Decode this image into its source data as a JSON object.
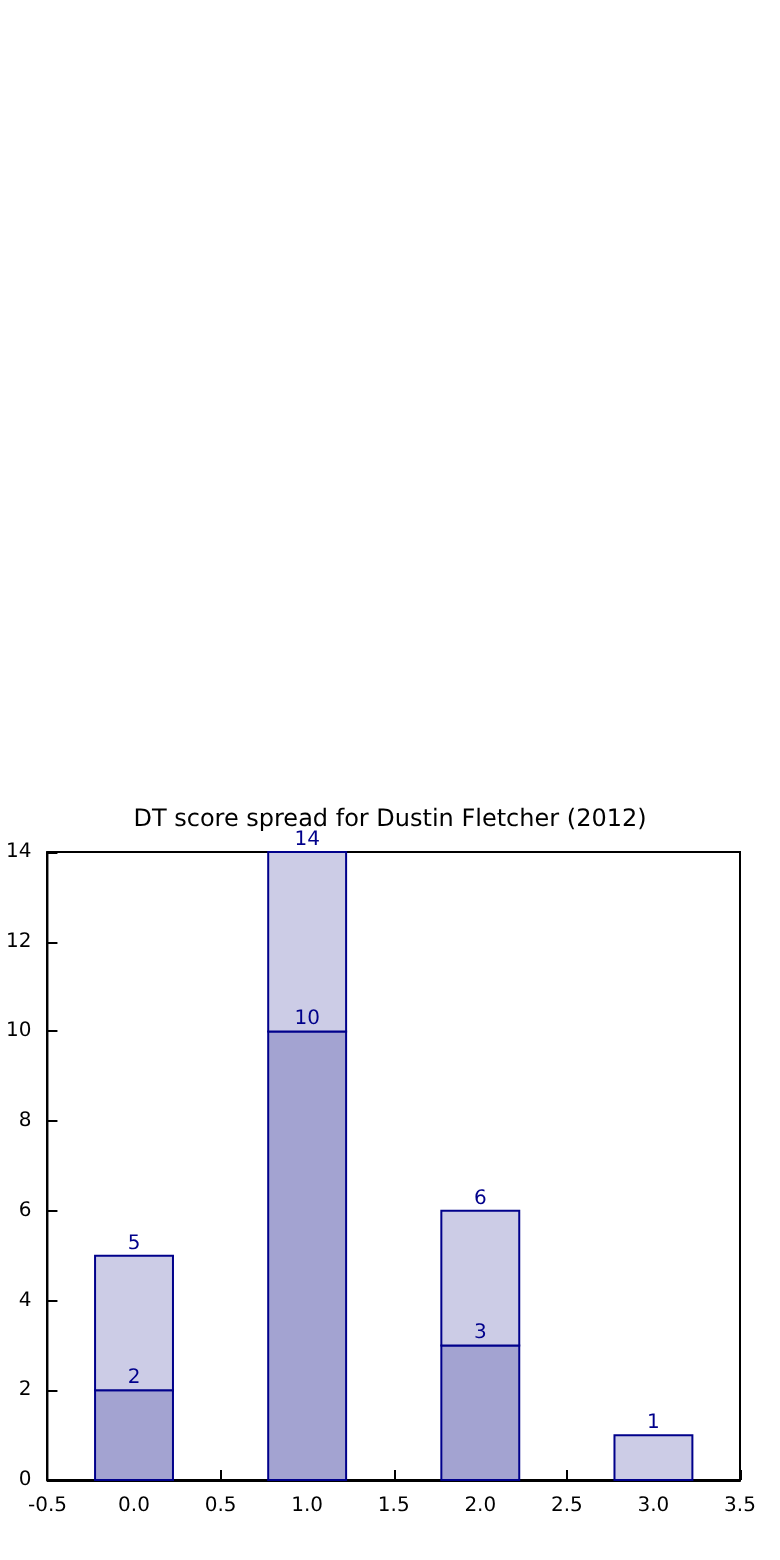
{
  "chart_data": {
    "type": "bar",
    "title": "DT score spread for Dustin Fletcher (2012)",
    "x": [
      0,
      1,
      2,
      3
    ],
    "stacked": true,
    "series": [
      {
        "color": "#a3a3d1",
        "values": [
          2,
          10,
          3,
          null
        ],
        "value_labels": [
          "2",
          "10",
          "3",
          null
        ]
      },
      {
        "color": "#cccce6",
        "values": [
          3,
          4,
          3,
          1
        ]
      }
    ],
    "totals": [
      "5",
      "14",
      "6",
      "1"
    ],
    "xlim": [
      -0.5,
      3.5
    ],
    "xticks": [
      -0.5,
      {
        "value": 0,
        "label": "0.0"
      },
      0.5,
      {
        "value": 1,
        "label": "1.0"
      },
      1.5,
      {
        "value": 2,
        "label": "2.0"
      },
      2.5,
      {
        "value": 3,
        "label": "3.0"
      },
      3.5
    ],
    "ylim": [
      0,
      14
    ],
    "yticks": [
      0,
      2,
      4,
      6,
      8,
      10,
      12,
      14
    ]
  }
}
